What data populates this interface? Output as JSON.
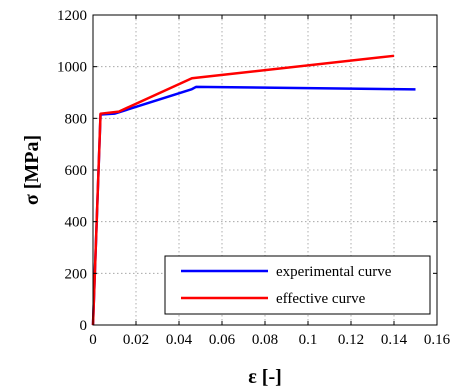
{
  "chart_data": {
    "type": "line",
    "xlabel": "ε [-]",
    "ylabel": "σ [MPa]",
    "xlim": [
      0,
      0.16
    ],
    "ylim": [
      0,
      1200
    ],
    "xticks": [
      0,
      0.02,
      0.04,
      0.06,
      0.08,
      0.1,
      0.12,
      0.14,
      0.16
    ],
    "xtick_labels": [
      "0",
      "0.02",
      "0.04",
      "0.06",
      "0.08",
      "0.1",
      "0.12",
      "0.14",
      "0.16"
    ],
    "yticks": [
      0,
      200,
      400,
      600,
      800,
      1000,
      1200
    ],
    "ytick_labels": [
      "0",
      "200",
      "400",
      "600",
      "800",
      "1000",
      "1200"
    ],
    "grid": true,
    "grid_style": "dotted",
    "legend_position": "bottom-right",
    "series": [
      {
        "name": "experimental curve",
        "color": "#0000ff",
        "x": [
          0,
          0.0035,
          0.01,
          0.046,
          0.048,
          0.15
        ],
        "y": [
          0,
          815,
          818,
          913,
          922,
          912
        ]
      },
      {
        "name": "effective curve",
        "color": "#ff0000",
        "x": [
          0,
          0.0035,
          0.012,
          0.046,
          0.14
        ],
        "y": [
          0,
          818,
          826,
          955,
          1042
        ]
      }
    ]
  }
}
